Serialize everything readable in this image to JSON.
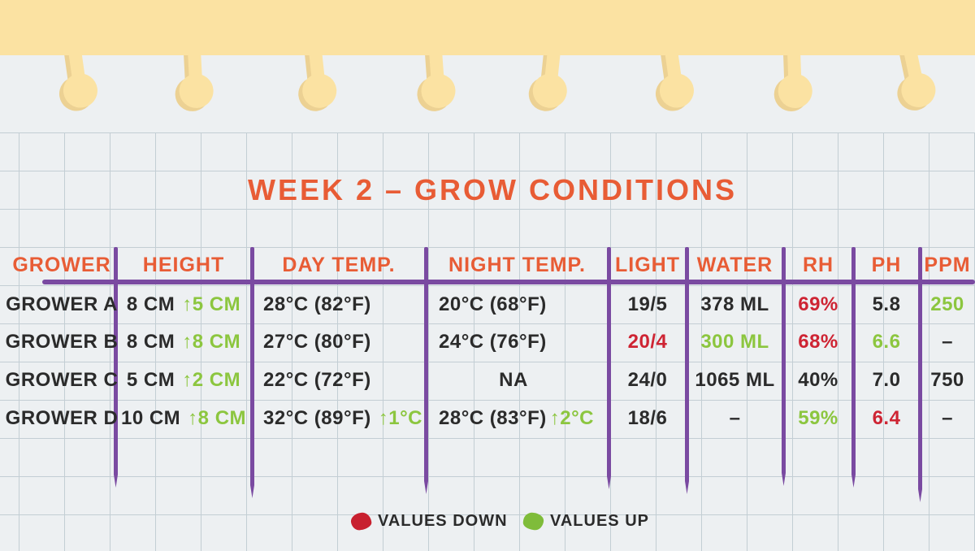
{
  "title": "WEEK 2 – GROW CONDITIONS",
  "chart_data": {
    "type": "table",
    "title": "WEEK 2 – GROW CONDITIONS",
    "columns": [
      "GROWER",
      "HEIGHT",
      "DAY TEMP.",
      "NIGHT TEMP.",
      "LIGHT",
      "WATER",
      "RH",
      "PH",
      "PPM"
    ],
    "rows": [
      {
        "grower": "GROWER A",
        "height_base": "8 CM",
        "height_delta": "↑5 CM",
        "day_temp": "28°C (82°F)",
        "day_temp_delta": "",
        "night_temp": "20°C (68°F)",
        "night_temp_delta": "",
        "light": "19/5",
        "light_color": "ink",
        "water": "378 ML",
        "water_color": "ink",
        "rh": "69%",
        "rh_color": "red",
        "ph": "5.8",
        "ph_color": "ink",
        "ppm": "250",
        "ppm_color": "green"
      },
      {
        "grower": "GROWER B",
        "height_base": "8 CM",
        "height_delta": "↑8 CM",
        "day_temp": "27°C (80°F)",
        "day_temp_delta": "",
        "night_temp": "24°C (76°F)",
        "night_temp_delta": "",
        "light": "20/4",
        "light_color": "red",
        "water": "300 ML",
        "water_color": "green",
        "rh": "68%",
        "rh_color": "red",
        "ph": "6.6",
        "ph_color": "green",
        "ppm": "–",
        "ppm_color": "ink"
      },
      {
        "grower": "GROWER C",
        "height_base": "5 CM",
        "height_delta": "↑2 CM",
        "day_temp": "22°C (72°F)",
        "day_temp_delta": "",
        "night_temp": "NA",
        "night_temp_delta": "",
        "light": "24/0",
        "light_color": "ink",
        "water": "1065 ML",
        "water_color": "ink",
        "rh": "40%",
        "rh_color": "ink",
        "ph": "7.0",
        "ph_color": "ink",
        "ppm": "750",
        "ppm_color": "ink"
      },
      {
        "grower": "GROWER D",
        "height_base": "10 CM",
        "height_delta": "↑8 CM",
        "day_temp": "32°C (89°F)",
        "day_temp_delta": "↑1°C",
        "night_temp": "28°C (83°F)",
        "night_temp_delta": "↑2°C",
        "light": "18/6",
        "light_color": "ink",
        "water": "–",
        "water_color": "ink",
        "rh": "59%",
        "rh_color": "green",
        "ph": "6.4",
        "ph_color": "red",
        "ppm": "–",
        "ppm_color": "ink"
      }
    ],
    "legend": {
      "down": "VALUES DOWN",
      "up": "VALUES UP"
    }
  },
  "colors": {
    "accent_orange": "#E85C35",
    "marker_purple": "#7A4AA1",
    "value_up_green": "#8CC63F",
    "value_down_red": "#CE2433",
    "ink": "#2B2B2B",
    "paper_yellow": "#FBE2A2",
    "paper_shadow": "#ECD193",
    "background": "#EDF0F2",
    "grid_line": "#C3CED4"
  }
}
